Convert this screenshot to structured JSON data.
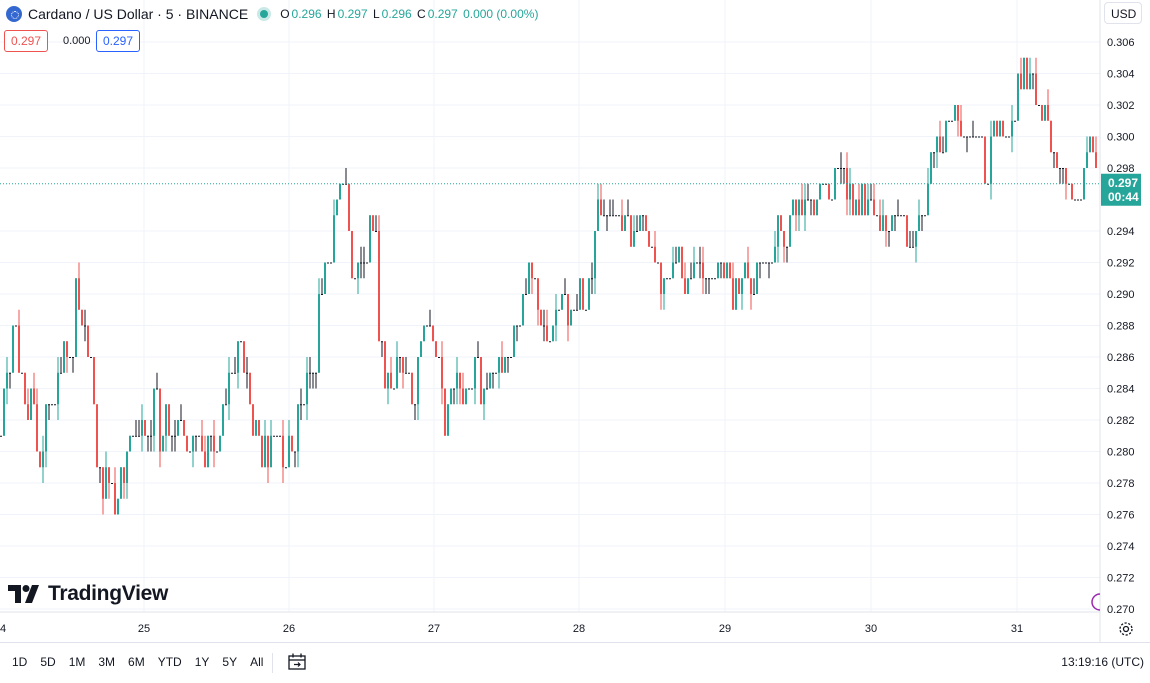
{
  "header": {
    "symbol": "Cardano / US Dollar · 5 · BINANCE",
    "open_label": "O",
    "open": "0.296",
    "high_label": "H",
    "high": "0.297",
    "low_label": "L",
    "low": "0.296",
    "close_label": "C",
    "close": "0.297",
    "change": "0.000 (0.00%)",
    "sell_price": "0.297",
    "spread": "0.000",
    "buy_price": "0.297",
    "currency": "USD",
    "last_price": "0.297",
    "countdown": "00:44"
  },
  "brand": "TradingView",
  "toolbar": {
    "ranges": [
      "1D",
      "5D",
      "1M",
      "3M",
      "6M",
      "YTD",
      "1Y",
      "5Y",
      "All"
    ],
    "clock": "13:19:16 (UTC)"
  },
  "colors": {
    "up": "#26a69a",
    "down": "#ef5350",
    "grid": "#f0f3fa"
  },
  "chart_data": {
    "type": "candlestick",
    "x_ticks": [
      "4",
      "25",
      "26",
      "27",
      "28",
      "29",
      "30",
      "31"
    ],
    "y_ticks": [
      "0.306",
      "0.304",
      "0.302",
      "0.300",
      "0.298",
      "0.294",
      "0.292",
      "0.290",
      "0.288",
      "0.286",
      "0.284",
      "0.282",
      "0.280",
      "0.278",
      "0.276",
      "0.274",
      "0.272",
      "0.270"
    ],
    "ylim": [
      0.2695,
      0.3065
    ],
    "current_price": 0.297,
    "path": [
      [
        0,
        0.281
      ],
      [
        6,
        0.286
      ],
      [
        14,
        0.29
      ],
      [
        22,
        0.282
      ],
      [
        30,
        0.284
      ],
      [
        38,
        0.278
      ],
      [
        46,
        0.283
      ],
      [
        56,
        0.285
      ],
      [
        64,
        0.286
      ],
      [
        70,
        0.289
      ],
      [
        76,
        0.292
      ],
      [
        82,
        0.288
      ],
      [
        92,
        0.284
      ],
      [
        98,
        0.277
      ],
      [
        104,
        0.279
      ],
      [
        112,
        0.276
      ],
      [
        120,
        0.279
      ],
      [
        130,
        0.28
      ],
      [
        140,
        0.281
      ],
      [
        152,
        0.284
      ],
      [
        160,
        0.281
      ],
      [
        168,
        0.282
      ],
      [
        178,
        0.282
      ],
      [
        190,
        0.279
      ],
      [
        200,
        0.281
      ],
      [
        212,
        0.28
      ],
      [
        222,
        0.282
      ],
      [
        230,
        0.284
      ],
      [
        240,
        0.288
      ],
      [
        248,
        0.283
      ],
      [
        256,
        0.281
      ],
      [
        266,
        0.28
      ],
      [
        276,
        0.279
      ],
      [
        288,
        0.28
      ],
      [
        298,
        0.282
      ],
      [
        310,
        0.286
      ],
      [
        320,
        0.29
      ],
      [
        330,
        0.292
      ],
      [
        336,
        0.296
      ],
      [
        342,
        0.296
      ],
      [
        350,
        0.292
      ],
      [
        358,
        0.291
      ],
      [
        366,
        0.294
      ],
      [
        372,
        0.293
      ],
      [
        378,
        0.288
      ],
      [
        384,
        0.284
      ],
      [
        392,
        0.285
      ],
      [
        402,
        0.286
      ],
      [
        412,
        0.284
      ],
      [
        420,
        0.287
      ],
      [
        428,
        0.288
      ],
      [
        436,
        0.286
      ],
      [
        444,
        0.282
      ],
      [
        452,
        0.285
      ],
      [
        462,
        0.284
      ],
      [
        472,
        0.286
      ],
      [
        480,
        0.283
      ],
      [
        490,
        0.285
      ],
      [
        500,
        0.286
      ],
      [
        510,
        0.287
      ],
      [
        518,
        0.289
      ],
      [
        528,
        0.291
      ],
      [
        538,
        0.289
      ],
      [
        544,
        0.286
      ],
      [
        552,
        0.289
      ],
      [
        562,
        0.29
      ],
      [
        572,
        0.289
      ],
      [
        580,
        0.29
      ],
      [
        590,
        0.291
      ],
      [
        598,
        0.295
      ],
      [
        606,
        0.296
      ],
      [
        614,
        0.295
      ],
      [
        622,
        0.295
      ],
      [
        632,
        0.294
      ],
      [
        642,
        0.294
      ],
      [
        652,
        0.293
      ],
      [
        658,
        0.291
      ],
      [
        666,
        0.292
      ],
      [
        676,
        0.292
      ],
      [
        686,
        0.291
      ],
      [
        696,
        0.291
      ],
      [
        706,
        0.292
      ],
      [
        716,
        0.291
      ],
      [
        726,
        0.291
      ],
      [
        736,
        0.29
      ],
      [
        746,
        0.291
      ],
      [
        756,
        0.291
      ],
      [
        766,
        0.292
      ],
      [
        776,
        0.294
      ],
      [
        786,
        0.295
      ],
      [
        796,
        0.295
      ],
      [
        806,
        0.296
      ],
      [
        816,
        0.297
      ],
      [
        826,
        0.297
      ],
      [
        836,
        0.298
      ],
      [
        846,
        0.297
      ],
      [
        856,
        0.296
      ],
      [
        866,
        0.296
      ],
      [
        876,
        0.295
      ],
      [
        886,
        0.294
      ],
      [
        896,
        0.294
      ],
      [
        906,
        0.293
      ],
      [
        914,
        0.293
      ],
      [
        922,
        0.295
      ],
      [
        930,
        0.298
      ],
      [
        940,
        0.3
      ],
      [
        948,
        0.301
      ],
      [
        956,
        0.301
      ],
      [
        964,
        0.3
      ],
      [
        972,
        0.3
      ],
      [
        978,
        0.297
      ],
      [
        986,
        0.299
      ],
      [
        996,
        0.3
      ],
      [
        1006,
        0.3
      ],
      [
        1014,
        0.302
      ],
      [
        1022,
        0.304
      ],
      [
        1030,
        0.303
      ],
      [
        1038,
        0.302
      ],
      [
        1046,
        0.301
      ],
      [
        1054,
        0.299
      ],
      [
        1062,
        0.298
      ],
      [
        1070,
        0.297
      ],
      [
        1078,
        0.296
      ],
      [
        1084,
        0.298
      ],
      [
        1090,
        0.301
      ],
      [
        1096,
        0.297
      ],
      [
        1100,
        0.297
      ]
    ]
  }
}
